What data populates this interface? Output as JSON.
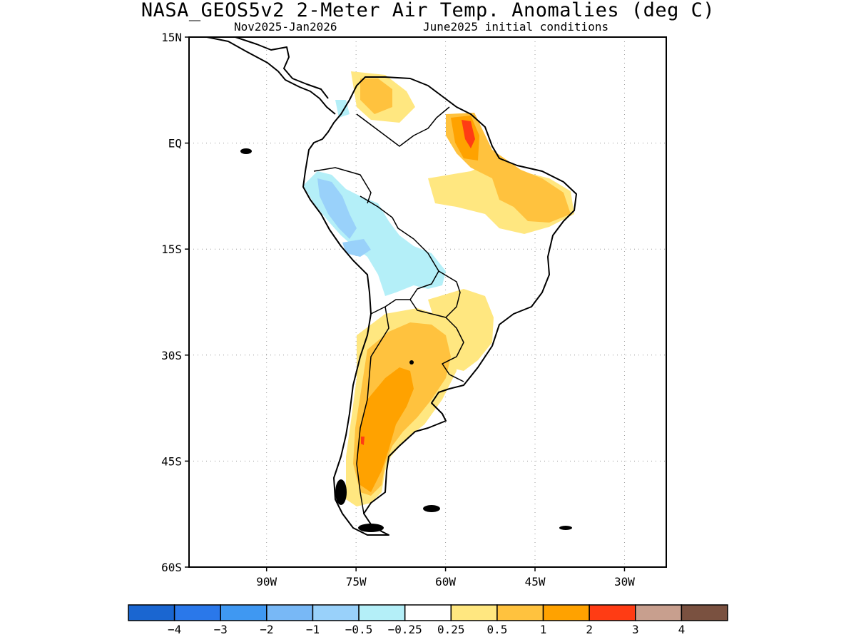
{
  "title": "NASA_GEOS5v2 2-Meter Air Temp. Anomalies (deg C)",
  "subtitle_left": "Nov2025-Jan2026",
  "subtitle_right": "June2025 initial conditions",
  "map": {
    "region": "South America",
    "lon_range": [
      -103,
      -23
    ],
    "lat_range": [
      -60,
      15
    ],
    "lat_ticks": [
      {
        "value": 15,
        "label": "15N"
      },
      {
        "value": 0,
        "label": "EQ"
      },
      {
        "value": -15,
        "label": "15S"
      },
      {
        "value": -30,
        "label": "30S"
      },
      {
        "value": -45,
        "label": "45S"
      },
      {
        "value": -60,
        "label": "60S"
      }
    ],
    "lon_ticks": [
      {
        "value": -90,
        "label": "90W"
      },
      {
        "value": -75,
        "label": "75W"
      },
      {
        "value": -60,
        "label": "60W"
      },
      {
        "value": -45,
        "label": "45W"
      },
      {
        "value": -30,
        "label": "30W"
      }
    ],
    "gridlines": "dotted"
  },
  "colorbar": {
    "colors": [
      "#1a66d1",
      "#2a78ea",
      "#3f98f2",
      "#78b8f6",
      "#99d1fa",
      "#b4eff8",
      "#ffffff",
      "#ffe780",
      "#ffc23e",
      "#ffa200",
      "#ff3c14",
      "#c89f8e",
      "#7a5140"
    ],
    "labels": [
      "-4",
      "-3",
      "-2",
      "-1",
      "-0.5",
      "-0.25",
      "0.25",
      "0.5",
      "1",
      "2",
      "3",
      "4"
    ]
  },
  "colors": {
    "land_outline": "#000000",
    "warm_05": "#ffe780",
    "warm_1": "#ffc23e",
    "warm_2": "#ffa200",
    "warm_3": "#ff3c14",
    "cool_025": "#b4eff8",
    "cool_05": "#99d1fa",
    "cool_1": "#78b8f6"
  }
}
